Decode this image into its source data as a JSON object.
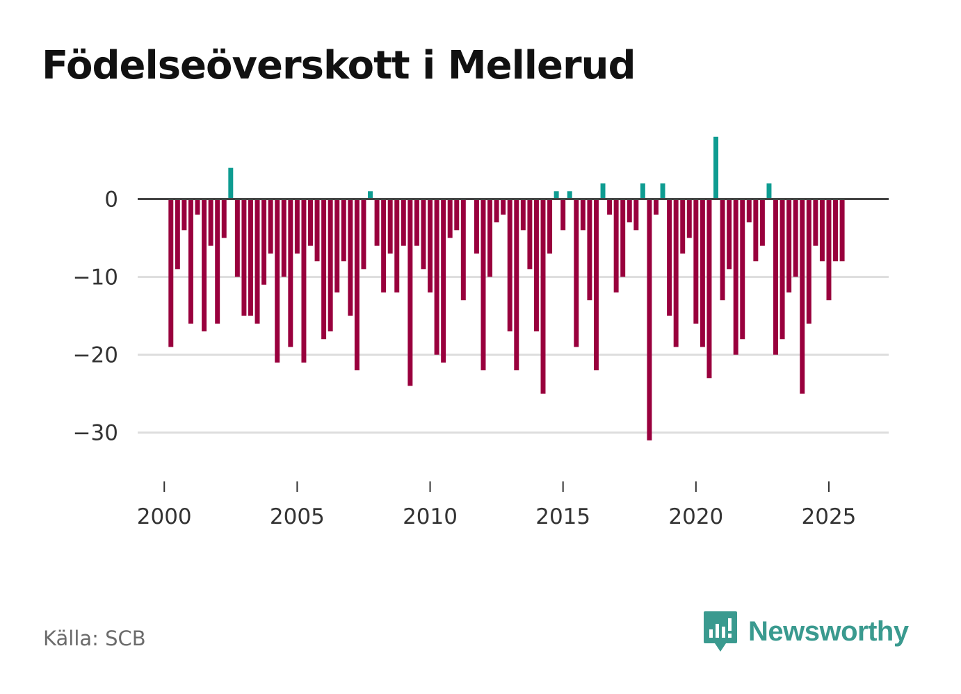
{
  "title": "Födelseöverskott i Mellerud",
  "source": "Källa: SCB",
  "brand": {
    "name": "Newsworthy",
    "icon": "newsworthy-logo-icon"
  },
  "colors": {
    "positive": "#0e9c91",
    "negative": "#99003d",
    "zero_line": "#444444",
    "grid": "#dddddd",
    "text": "#333333"
  },
  "chart_data": {
    "type": "bar",
    "title": "Födelseöverskott i Mellerud",
    "xlabel": "",
    "ylabel": "",
    "frequency": "quarterly",
    "start": 2000.25,
    "step": 0.25,
    "values": [
      -19,
      -9,
      -4,
      -16,
      -2,
      -17,
      -6,
      -16,
      -5,
      4,
      -10,
      -15,
      -15,
      -16,
      -11,
      -7,
      -21,
      -10,
      -19,
      -7,
      -21,
      -6,
      -8,
      -18,
      -17,
      -12,
      -8,
      -15,
      -22,
      -9,
      1,
      -6,
      -12,
      -7,
      -12,
      -6,
      -24,
      -6,
      -9,
      -12,
      -20,
      -21,
      -5,
      -4,
      -13,
      0,
      -7,
      -22,
      -10,
      -3,
      -2,
      -17,
      -22,
      -4,
      -9,
      -17,
      -25,
      -7,
      1,
      -4,
      1,
      -19,
      -4,
      -13,
      -22,
      2,
      -2,
      -12,
      -10,
      -3,
      -4,
      2,
      -31,
      -2,
      2,
      -15,
      -19,
      -7,
      -5,
      -16,
      -19,
      -23,
      8,
      -13,
      -9,
      -20,
      -18,
      -3,
      -8,
      -6,
      2,
      -20,
      -18,
      -12,
      -10,
      -25,
      -16,
      -6,
      -8,
      -13,
      -8,
      -8
    ],
    "ylim": [
      -36,
      9.5
    ],
    "xlim": [
      1999.0,
      2027.25
    ],
    "yticks": [
      0,
      -10,
      -20,
      -30
    ],
    "ytick_labels": [
      "0",
      "−10",
      "−20",
      "−30"
    ],
    "xticks": [
      2000,
      2005,
      2010,
      2015,
      2020,
      2025
    ],
    "xtick_labels": [
      "2000",
      "2005",
      "2010",
      "2015",
      "2020",
      "2025"
    ],
    "grid": true,
    "legend": "none"
  }
}
